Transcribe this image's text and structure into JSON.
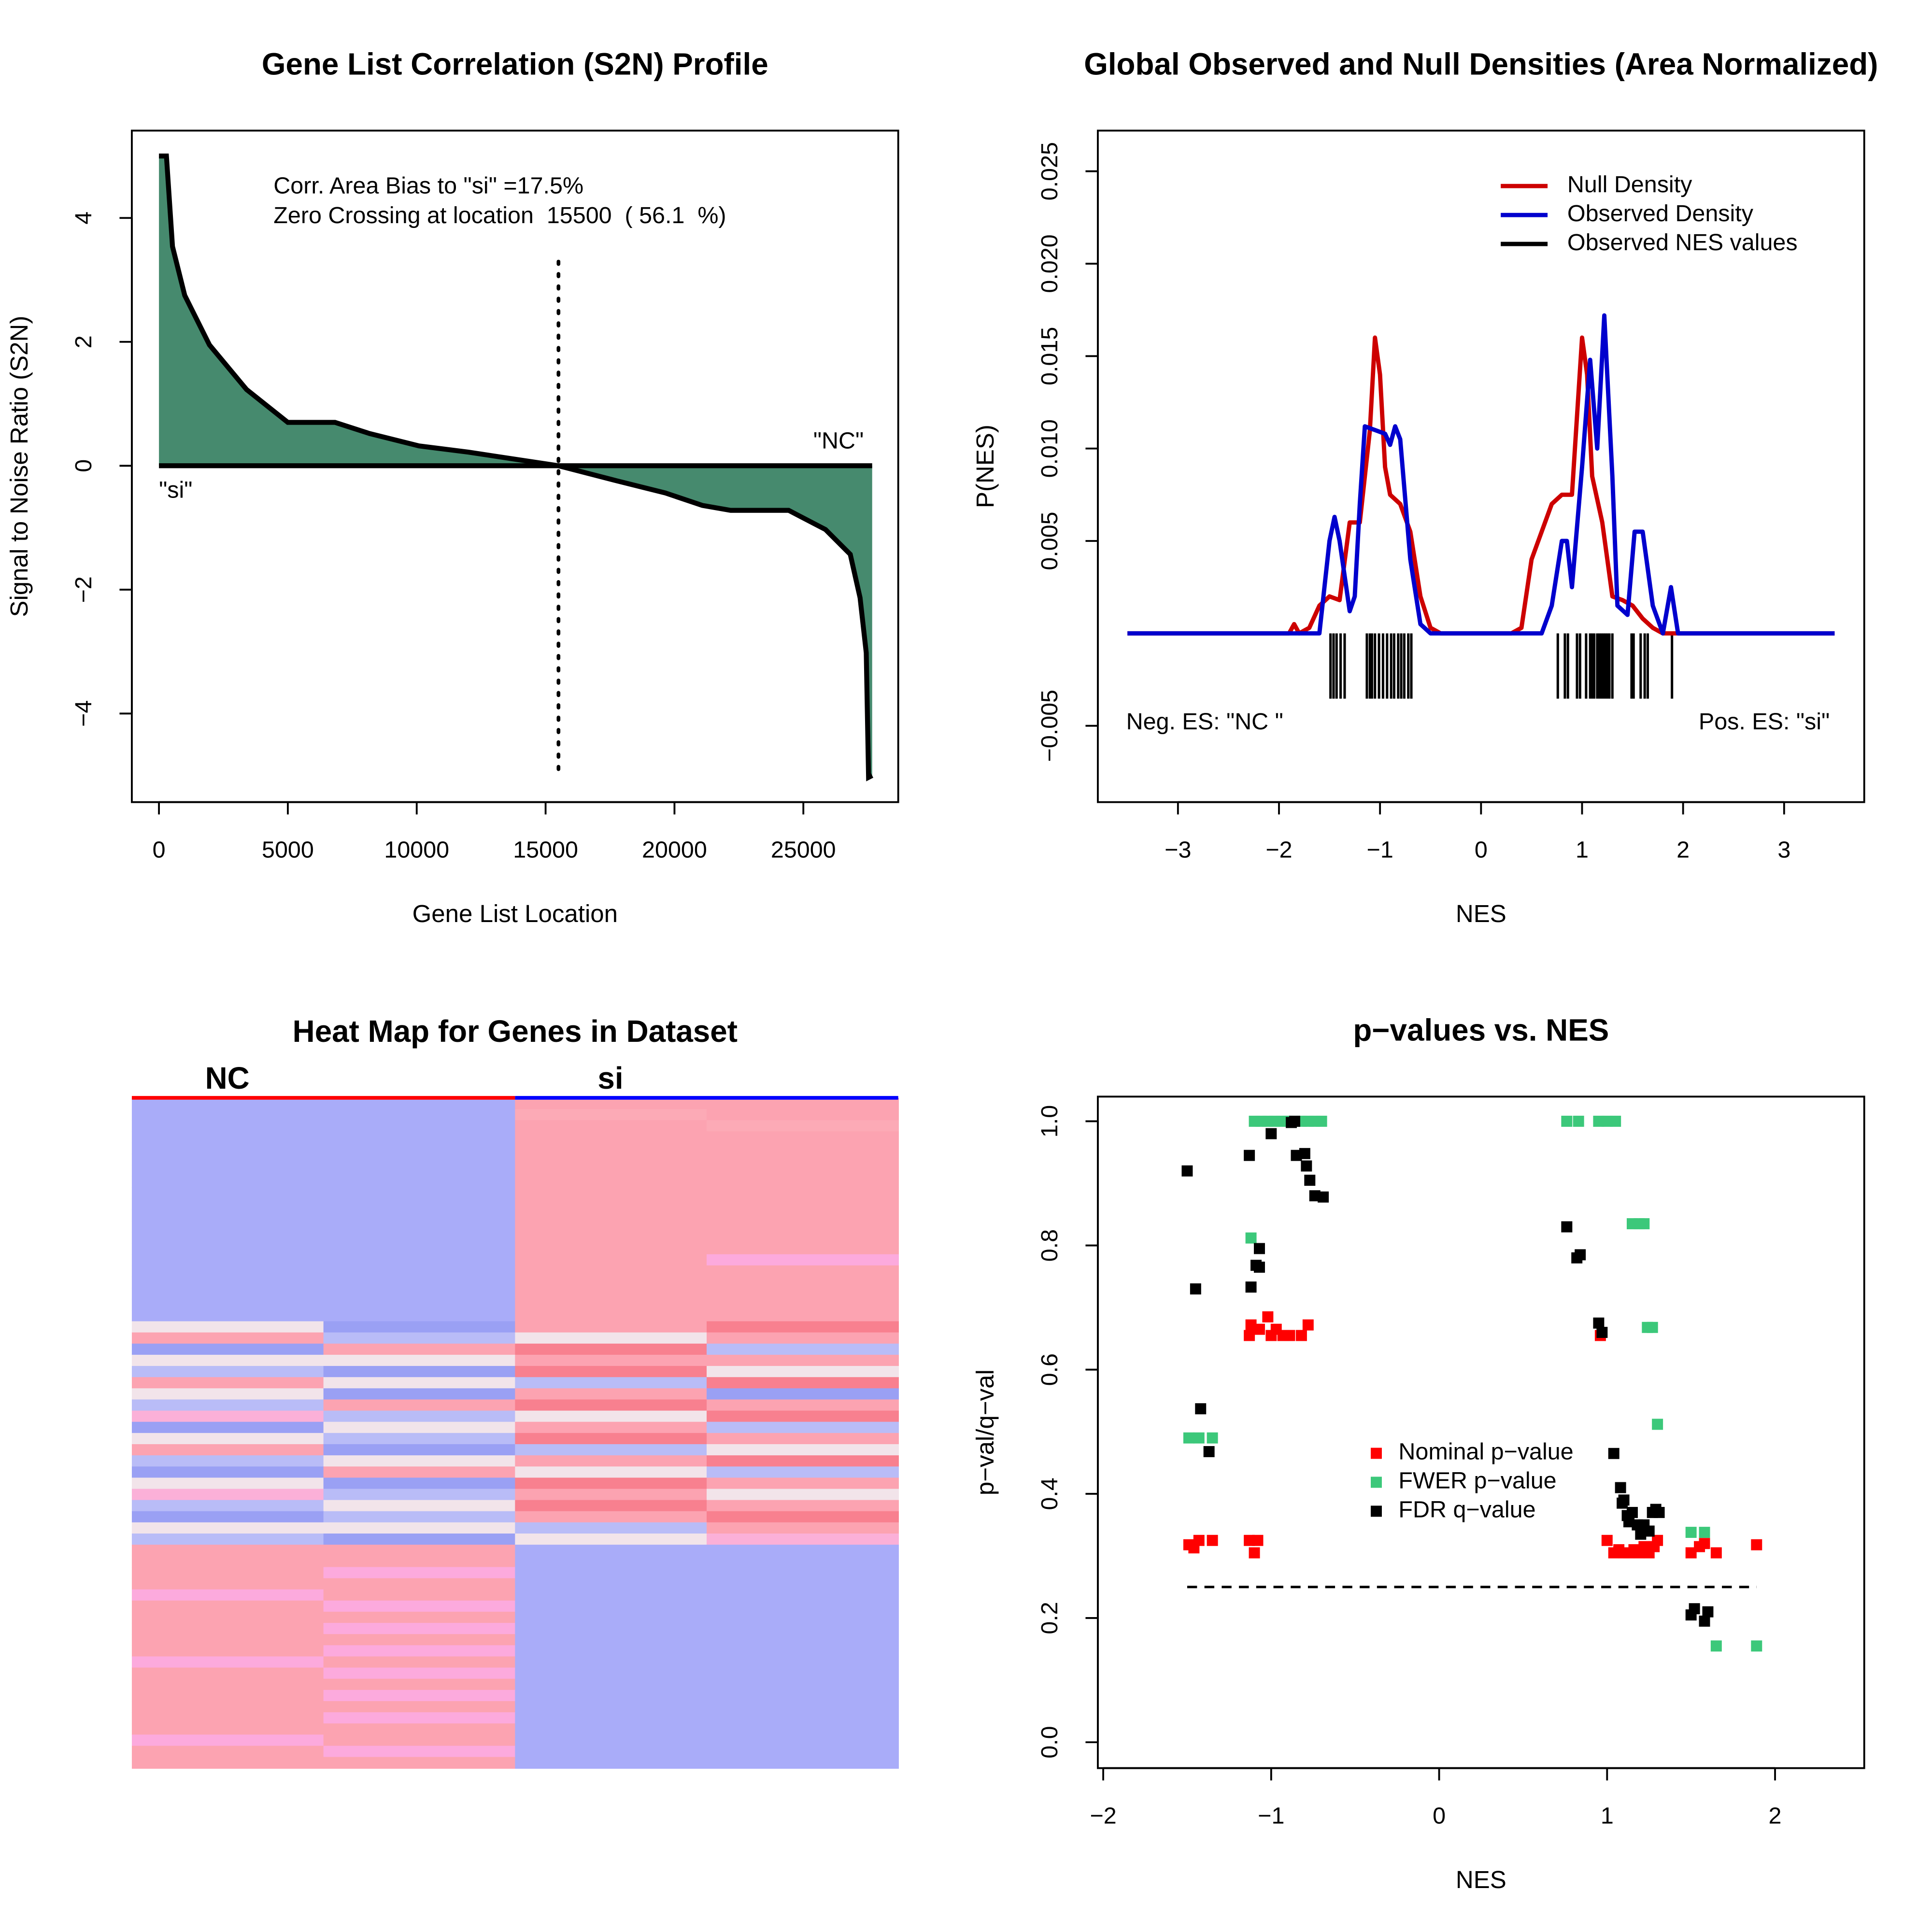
{
  "chart_data": [
    {
      "type": "area",
      "title": "Gene List Correlation (S2N) Profile",
      "x_label": "Gene List Location",
      "y_label": "Signal to Noise Ratio (S2N)",
      "annotations": [
        "Corr. Area Bias to \"si\" =17.5%",
        "Zero Crossing at location  15500  ( 56.1  %)"
      ],
      "left_label": "\"si\"",
      "right_label": "\"NC\"",
      "zero_crossing": 15500,
      "color": "#468a6e",
      "x": [
        0,
        290,
        525,
        1000,
        1960,
        3400,
        5000,
        6830,
        8170,
        10090,
        12000,
        13900,
        15500,
        17730,
        19650,
        21080,
        22180,
        24430,
        25860,
        26820,
        27200,
        27440,
        27530,
        27670
      ],
      "values": [
        5,
        5,
        3.54,
        2.75,
        1.95,
        1.23,
        0.7,
        0.7,
        0.52,
        0.32,
        0.22,
        0.1,
        0,
        -0.24,
        -0.44,
        -0.64,
        -0.72,
        -0.72,
        -1.03,
        -1.43,
        -2.13,
        -3.02,
        -5.03,
        -5
      ],
      "xlim": [
        -1052,
        28681
      ],
      "ylim": [
        -5.43,
        5.41
      ],
      "xticks": [
        0,
        5000,
        10000,
        15000,
        20000,
        25000
      ],
      "yticks": [
        {
          "value": -4,
          "label": "−4"
        },
        {
          "value": -2,
          "label": "−2"
        },
        0,
        2,
        4
      ]
    },
    {
      "type": "line",
      "title": "Global Observed and Null Densities (Area Normalized)",
      "x_label": "NES",
      "y_label": "P(NES)",
      "neg_label": "Neg. ES: \"NC \"",
      "pos_label": "Pos. ES: \"si\"",
      "legend": "top-right",
      "series": [
        {
          "name": "Null Density",
          "color": "#cd0000",
          "x": [
            -3.5,
            -1.9,
            -1.85,
            -1.8,
            -1.7,
            -1.6,
            -1.5,
            -1.4,
            -1.3,
            -1.2,
            -1.1,
            -1.05,
            -1.0,
            -0.95,
            -0.9,
            -0.8,
            -0.7,
            -0.6,
            -0.5,
            -0.4,
            0.3,
            0.4,
            0.5,
            0.6,
            0.7,
            0.8,
            0.9,
            1.0,
            1.05,
            1.1,
            1.2,
            1.3,
            1.4,
            1.5,
            1.6,
            1.7,
            1.8,
            3.5
          ],
          "values": [
            0,
            0,
            0.0005,
            0,
            0.0003,
            0.0015,
            0.002,
            0.0018,
            0.006,
            0.006,
            0.011,
            0.016,
            0.014,
            0.009,
            0.0075,
            0.007,
            0.0055,
            0.002,
            0.0003,
            0,
            0,
            0.0003,
            0.004,
            0.0055,
            0.007,
            0.0075,
            0.0075,
            0.016,
            0.014,
            0.0085,
            0.006,
            0.002,
            0.0018,
            0.0015,
            0.0008,
            0.0003,
            0,
            0
          ]
        },
        {
          "name": "Observed Density",
          "color": "#0000cd",
          "x": [
            -3.5,
            -1.6,
            -1.5,
            -1.45,
            -1.4,
            -1.3,
            -1.25,
            -1.2,
            -1.15,
            -1.05,
            -0.95,
            -0.9,
            -0.85,
            -0.8,
            -0.7,
            -0.6,
            -0.5,
            0.6,
            0.7,
            0.8,
            0.85,
            0.9,
            1.0,
            1.08,
            1.15,
            1.22,
            1.3,
            1.35,
            1.45,
            1.52,
            1.6,
            1.7,
            1.8,
            1.88,
            1.95,
            3.5
          ],
          "values": [
            0,
            0,
            0.005,
            0.0063,
            0.005,
            0.0012,
            0.002,
            0.007,
            0.0112,
            0.011,
            0.0108,
            0.0102,
            0.0112,
            0.0105,
            0.004,
            0.0005,
            0,
            0,
            0.0015,
            0.005,
            0.005,
            0.0025,
            0.009,
            0.0148,
            0.01,
            0.0172,
            0.0085,
            0.0015,
            0.001,
            0.0055,
            0.0055,
            0.0015,
            0,
            0.0025,
            0,
            0
          ]
        }
      ],
      "rug": {
        "name": "Observed NES values",
        "color": "#000000",
        "x": [
          -1.49,
          -1.46,
          -1.43,
          -1.39,
          -1.35,
          -1.13,
          -1.1,
          -1.08,
          -1.05,
          -1.01,
          -0.97,
          -0.93,
          -0.89,
          -0.86,
          -0.82,
          -0.79,
          -0.76,
          -0.72,
          -0.69,
          0.76,
          0.83,
          0.86,
          0.95,
          0.98,
          1.04,
          1.08,
          1.1,
          1.12,
          1.15,
          1.17,
          1.19,
          1.21,
          1.23,
          1.25,
          1.27,
          1.3,
          1.49,
          1.51,
          1.58,
          1.62,
          1.65,
          1.89
        ]
      },
      "xlim": [
        -3.793,
        3.793
      ],
      "ylim": [
        -0.00913,
        0.0272
      ],
      "xticks": [
        {
          "value": -3,
          "label": "−3"
        },
        {
          "value": -2,
          "label": "−2"
        },
        {
          "value": -1,
          "label": "−1"
        },
        0,
        1,
        2,
        3
      ],
      "yticks": [
        {
          "value": -0.005,
          "label": "−0.005"
        },
        0.005,
        {
          "value": 0.01,
          "label": "0.010"
        },
        0.015,
        {
          "value": 0.02,
          "label": "0.020"
        },
        0.025
      ]
    },
    {
      "type": "heatmap",
      "title": "Heat Map for Genes in Dataset",
      "columns": [
        "NC",
        "si"
      ],
      "column_colors": [
        "#ff0000",
        "#0000ff"
      ],
      "rows": [
        [
          "#a9acf9",
          "#a9acf9",
          "#fca3b1",
          "#fca3b1"
        ],
        [
          "#a9acf9",
          "#a9acf9",
          "#fcaab6",
          "#fca3b1"
        ],
        [
          "#a9acf9",
          "#a9acf9",
          "#fca3b1",
          "#fcaab6"
        ],
        [
          "#a9acf9",
          "#a9acf9",
          "#fca3b1",
          "#fca3b1"
        ],
        [
          "#a9acf9",
          "#a9acf9",
          "#fca3b1",
          "#fca3b1"
        ],
        [
          "#a9acf9",
          "#a9acf9",
          "#fca3b1",
          "#fca3b1"
        ],
        [
          "#a9acf9",
          "#a9acf9",
          "#fca3b1",
          "#fca3b1"
        ],
        [
          "#a9acf9",
          "#a9acf9",
          "#fca3b1",
          "#fca3b1"
        ],
        [
          "#a9acf9",
          "#a9acf9",
          "#fca3b1",
          "#fca3b1"
        ],
        [
          "#a9acf9",
          "#a9acf9",
          "#fca3b1",
          "#fca3b1"
        ],
        [
          "#a9acf9",
          "#a9acf9",
          "#fca3b1",
          "#fca3b1"
        ],
        [
          "#a9acf9",
          "#a9acf9",
          "#fca3b1",
          "#fca3b1"
        ],
        [
          "#a9acf9",
          "#a9acf9",
          "#fca3b1",
          "#fca3b1"
        ],
        [
          "#a9acf9",
          "#a9acf9",
          "#fca3b1",
          "#fca3b1"
        ],
        [
          "#a9acf9",
          "#a9acf9",
          "#fca3b1",
          "#fcaadd"
        ],
        [
          "#a9acf9",
          "#a9acf9",
          "#fca3b1",
          "#fca3b1"
        ],
        [
          "#a9acf9",
          "#a9acf9",
          "#fca3b1",
          "#fca3b1"
        ],
        [
          "#a9acf9",
          "#a9acf9",
          "#fca3b1",
          "#fca3b1"
        ],
        [
          "#a9acf9",
          "#a9acf9",
          "#fca3b1",
          "#fca3b1"
        ],
        [
          "#a9acf9",
          "#a9acf9",
          "#fca3b1",
          "#fca3b1"
        ],
        [
          "#f2e4ea",
          "#9aa0f4",
          "#fca3b1",
          "#f8808f"
        ],
        [
          "#fca3b1",
          "#b9bcf7",
          "#f2e4ea",
          "#fca3b1"
        ],
        [
          "#9aa0f4",
          "#fca3b1",
          "#f8808f",
          "#b9bcf7"
        ],
        [
          "#f2e4ea",
          "#f2e4ea",
          "#fca3b1",
          "#fca3b1"
        ],
        [
          "#b9bcf7",
          "#9aa0f4",
          "#f8808f",
          "#f2e4ea"
        ],
        [
          "#fca3b1",
          "#f2e4ea",
          "#b9bcf7",
          "#f8808f"
        ],
        [
          "#f2e4ea",
          "#9aa0f4",
          "#fca3b1",
          "#9aa0f4"
        ],
        [
          "#b9bcf7",
          "#fca3b1",
          "#f8808f",
          "#fca3b1"
        ],
        [
          "#fbb0d8",
          "#b9bcf7",
          "#f2e4ea",
          "#f8808f"
        ],
        [
          "#9aa0f4",
          "#f2e4ea",
          "#fca3b1",
          "#b9bcf7"
        ],
        [
          "#f2e4ea",
          "#b9bcf7",
          "#f8808f",
          "#fca3b1"
        ],
        [
          "#fca3b1",
          "#9aa0f4",
          "#b9bcf7",
          "#f2e4ea"
        ],
        [
          "#b9bcf7",
          "#f2e4ea",
          "#fca3b1",
          "#f8808f"
        ],
        [
          "#9aa0f4",
          "#fca3b1",
          "#f2e4ea",
          "#b9bcf7"
        ],
        [
          "#f2e4ea",
          "#9aa0f4",
          "#f8808f",
          "#fca3b1"
        ],
        [
          "#fbb0d8",
          "#b9bcf7",
          "#fca3b1",
          "#f2e4ea"
        ],
        [
          "#b9bcf7",
          "#f2e4ea",
          "#f8808f",
          "#fca3b1"
        ],
        [
          "#9aa0f4",
          "#b9bcf7",
          "#fca3b1",
          "#f8808f"
        ],
        [
          "#f2e4ea",
          "#f2e4ea",
          "#b9bcf7",
          "#fca3b1"
        ],
        [
          "#b9bcf7",
          "#9aa0f4",
          "#f2e4ea",
          "#fbb0d8"
        ],
        [
          "#fca3b1",
          "#fca3b1",
          "#a9acf9",
          "#a9acf9"
        ],
        [
          "#fca3b1",
          "#fca3b1",
          "#a9acf9",
          "#a9acf9"
        ],
        [
          "#fca3b1",
          "#fcaadd",
          "#a9acf9",
          "#a9acf9"
        ],
        [
          "#fca3b1",
          "#fca3b1",
          "#a9acf9",
          "#a9acf9"
        ],
        [
          "#fcaadd",
          "#fca3b1",
          "#a9acf9",
          "#a9acf9"
        ],
        [
          "#fca3b1",
          "#fcaadd",
          "#a9acf9",
          "#a9acf9"
        ],
        [
          "#fca3b1",
          "#fca3b1",
          "#a9acf9",
          "#a9acf9"
        ],
        [
          "#fca3b1",
          "#fcaadd",
          "#a9acf9",
          "#a9acf9"
        ],
        [
          "#fca3b1",
          "#fca3b1",
          "#a9acf9",
          "#a9acf9"
        ],
        [
          "#fca3b1",
          "#fcaadd",
          "#a9acf9",
          "#a9acf9"
        ],
        [
          "#fcaadd",
          "#fca3b1",
          "#a9acf9",
          "#a9acf9"
        ],
        [
          "#fca3b1",
          "#fcaadd",
          "#a9acf9",
          "#a9acf9"
        ],
        [
          "#fca3b1",
          "#fca3b1",
          "#a9acf9",
          "#a9acf9"
        ],
        [
          "#fca3b1",
          "#fcaadd",
          "#a9acf9",
          "#a9acf9"
        ],
        [
          "#fca3b1",
          "#fca3b1",
          "#a9acf9",
          "#a9acf9"
        ],
        [
          "#fca3b1",
          "#fcaadd",
          "#a9acf9",
          "#a9acf9"
        ],
        [
          "#fca3b1",
          "#fca3b1",
          "#a9acf9",
          "#a9acf9"
        ],
        [
          "#fcaadd",
          "#fca3b1",
          "#a9acf9",
          "#a9acf9"
        ],
        [
          "#fca3b1",
          "#fcaadd",
          "#a9acf9",
          "#a9acf9"
        ],
        [
          "#fca3b1",
          "#fca3b1",
          "#a9acf9",
          "#a9acf9"
        ]
      ]
    },
    {
      "type": "scatter",
      "title": "p−values vs. NES",
      "x_label": "NES",
      "y_label": "p−val/q−val",
      "legend": "center",
      "threshold": 0.25,
      "series": [
        {
          "name": "Nominal p−value",
          "color": "#ff0000",
          "x": [
            -1.49,
            -1.46,
            -1.43,
            -1.35,
            -1.13,
            -1.1,
            -1.08,
            -1.13,
            -1.12,
            -1.07,
            -1.02,
            -1.0,
            -0.97,
            -0.93,
            -0.89,
            -0.82,
            -0.78,
            0.96,
            1.0,
            1.04,
            1.07,
            1.1,
            1.13,
            1.16,
            1.19,
            1.22,
            1.25,
            1.28,
            1.3,
            1.5,
            1.55,
            1.58,
            1.65,
            1.89
          ],
          "values": [
            0.318,
            0.313,
            0.325,
            0.325,
            0.325,
            0.305,
            0.325,
            0.655,
            0.672,
            0.665,
            0.685,
            0.655,
            0.665,
            0.655,
            0.655,
            0.655,
            0.672,
            0.655,
            0.325,
            0.305,
            0.31,
            0.305,
            0.305,
            0.31,
            0.305,
            0.315,
            0.305,
            0.315,
            0.325,
            0.305,
            0.315,
            0.32,
            0.305,
            0.318
          ]
        },
        {
          "name": "FWER p−value",
          "color": "#3cc87a",
          "x": [
            -1.49,
            -1.43,
            -1.35,
            -1.12,
            -1.1,
            -1.06,
            -1.02,
            -0.98,
            -0.94,
            -0.9,
            -0.86,
            -0.82,
            -0.78,
            -0.74,
            -0.7,
            0.76,
            0.83,
            0.95,
            1.0,
            1.05,
            1.15,
            1.19,
            1.22,
            1.24,
            1.27,
            1.3,
            1.5,
            1.58,
            1.65,
            1.89
          ],
          "values": [
            0.49,
            0.49,
            0.49,
            0.812,
            1,
            1,
            1,
            1,
            1,
            1,
            1,
            1,
            1,
            1,
            1,
            1,
            1,
            1,
            1,
            1,
            0.835,
            0.835,
            0.835,
            0.668,
            0.668,
            0.512,
            0.338,
            0.338,
            0.155,
            0.155
          ]
        },
        {
          "name": "FDR q−value",
          "color": "#000000",
          "x": [
            -1.5,
            -1.45,
            -1.42,
            -1.37,
            -1.13,
            -1.12,
            -1.09,
            -1.07,
            -1.07,
            -1.0,
            -0.88,
            -0.86,
            -0.85,
            -0.8,
            -0.79,
            -0.77,
            -0.74,
            -0.69,
            0.76,
            0.82,
            0.84,
            0.95,
            0.97,
            1.04,
            1.08,
            1.09,
            1.1,
            1.12,
            1.13,
            1.15,
            1.18,
            1.2,
            1.22,
            1.25,
            1.27,
            1.29,
            1.31,
            1.5,
            1.52,
            1.58,
            1.6
          ],
          "values": [
            0.92,
            0.73,
            0.537,
            0.468,
            0.945,
            0.733,
            0.768,
            0.795,
            0.765,
            0.98,
            0.998,
            1,
            0.945,
            0.948,
            0.928,
            0.905,
            0.88,
            0.878,
            0.83,
            0.78,
            0.785,
            0.675,
            0.66,
            0.465,
            0.41,
            0.385,
            0.39,
            0.365,
            0.355,
            0.37,
            0.35,
            0.335,
            0.35,
            0.34,
            0.37,
            0.375,
            0.37,
            0.205,
            0.215,
            0.195,
            0.21
          ]
        }
      ],
      "xlim": [
        -2.032,
        2.531
      ],
      "ylim": [
        -0.0417,
        1.0397
      ],
      "xticks": [
        {
          "value": -2,
          "label": "−2"
        },
        {
          "value": -1,
          "label": "−1"
        },
        0,
        1,
        2
      ],
      "yticks": [
        {
          "value": 0,
          "label": "0.0"
        },
        0.2,
        0.4,
        0.6,
        0.8,
        {
          "value": 1,
          "label": "1.0"
        }
      ]
    }
  ]
}
